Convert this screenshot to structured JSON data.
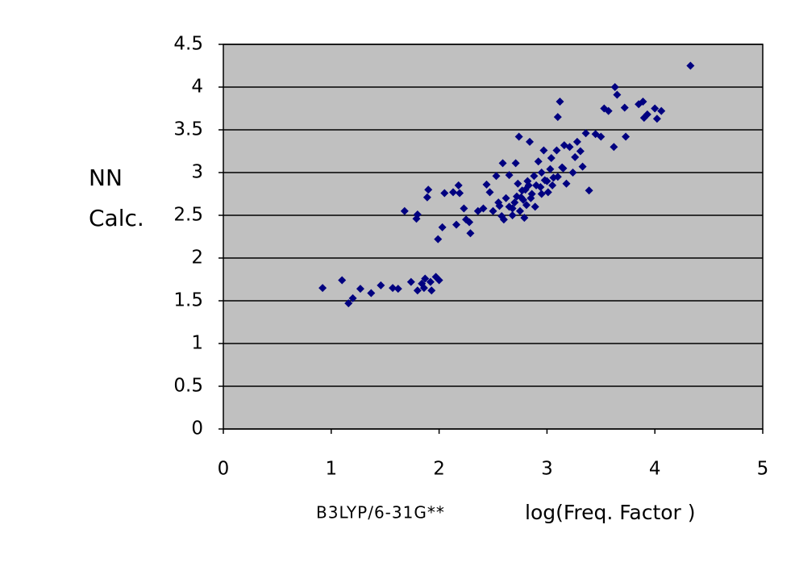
{
  "chart_data": {
    "type": "scatter",
    "ylabel_lines": [
      "NN",
      "Calc."
    ],
    "xlabel_method": "B3LYP/6-31G**",
    "xlabel": "log(Freq. Factor )",
    "color": "#000080",
    "plot_background": "#c0c0c0",
    "grid": true,
    "xlim": [
      0,
      5
    ],
    "xticks": [
      0,
      1,
      2,
      3,
      4,
      5
    ],
    "ylim": [
      0,
      4.5
    ],
    "yticks": [
      0,
      0.5,
      1,
      1.5,
      2,
      2.5,
      3,
      3.5,
      4,
      4.5
    ],
    "x": [
      0.92,
      1.1,
      1.16,
      1.2,
      1.27,
      1.37,
      1.46,
      1.57,
      1.62,
      1.68,
      1.74,
      1.79,
      1.8,
      1.8,
      1.84,
      1.87,
      1.86,
      1.89,
      1.9,
      1.92,
      1.93,
      1.97,
      1.99,
      2.0,
      2.03,
      2.05,
      2.13,
      2.16,
      2.18,
      2.19,
      2.23,
      2.25,
      2.28,
      2.29,
      2.36,
      2.41,
      2.44,
      2.47,
      2.5,
      2.53,
      2.56,
      2.58,
      2.59,
      2.62,
      2.65,
      2.68,
      2.71,
      2.73,
      2.74,
      2.76,
      2.77,
      2.79,
      2.81,
      2.83,
      2.84,
      2.86,
      2.88,
      2.89,
      2.92,
      2.94,
      2.97,
      2.98,
      3.01,
      3.03,
      3.04,
      3.06,
      3.09,
      3.1,
      3.12,
      3.14,
      3.16,
      3.18,
      3.21,
      3.24,
      3.26,
      3.28,
      3.31,
      3.33,
      3.36,
      3.39,
      3.45,
      3.5,
      3.53,
      3.57,
      3.62,
      3.63,
      3.65,
      3.72,
      3.73,
      3.85,
      3.89,
      3.9,
      3.93,
      4.0,
      4.02,
      4.06,
      4.33,
      2.6,
      2.7,
      2.75,
      2.8,
      2.85,
      2.9,
      2.95,
      3.0,
      3.05,
      2.65,
      2.72,
      2.78,
      2.82,
      2.55,
      2.68,
      3.1,
      3.15,
      2.95
    ],
    "values": [
      1.65,
      1.74,
      1.47,
      1.53,
      1.64,
      1.59,
      1.68,
      1.65,
      1.64,
      2.55,
      1.72,
      2.46,
      2.51,
      1.62,
      1.7,
      1.76,
      1.65,
      2.71,
      2.8,
      1.72,
      1.62,
      1.78,
      2.22,
      1.74,
      2.36,
      2.76,
      2.77,
      2.39,
      2.85,
      2.76,
      2.58,
      2.45,
      2.42,
      2.29,
      2.55,
      2.58,
      2.86,
      2.77,
      2.55,
      2.96,
      2.61,
      2.49,
      3.11,
      2.7,
      2.97,
      2.58,
      3.11,
      2.87,
      3.42,
      2.71,
      2.79,
      2.47,
      2.62,
      2.85,
      3.36,
      2.75,
      2.96,
      2.6,
      3.13,
      2.83,
      3.26,
      2.91,
      2.77,
      3.04,
      3.17,
      2.94,
      3.26,
      3.65,
      3.83,
      3.06,
      3.32,
      2.87,
      3.3,
      3.0,
      3.18,
      3.36,
      3.25,
      3.07,
      3.46,
      2.79,
      3.45,
      3.42,
      3.75,
      3.72,
      3.3,
      4.0,
      3.91,
      3.76,
      3.42,
      3.8,
      3.83,
      3.64,
      3.68,
      3.75,
      3.63,
      3.72,
      4.25,
      2.45,
      2.65,
      2.55,
      2.8,
      2.7,
      2.85,
      2.75,
      2.9,
      2.85,
      2.6,
      2.72,
      2.68,
      2.9,
      2.65,
      2.5,
      2.95,
      3.05,
      3.0
    ]
  }
}
